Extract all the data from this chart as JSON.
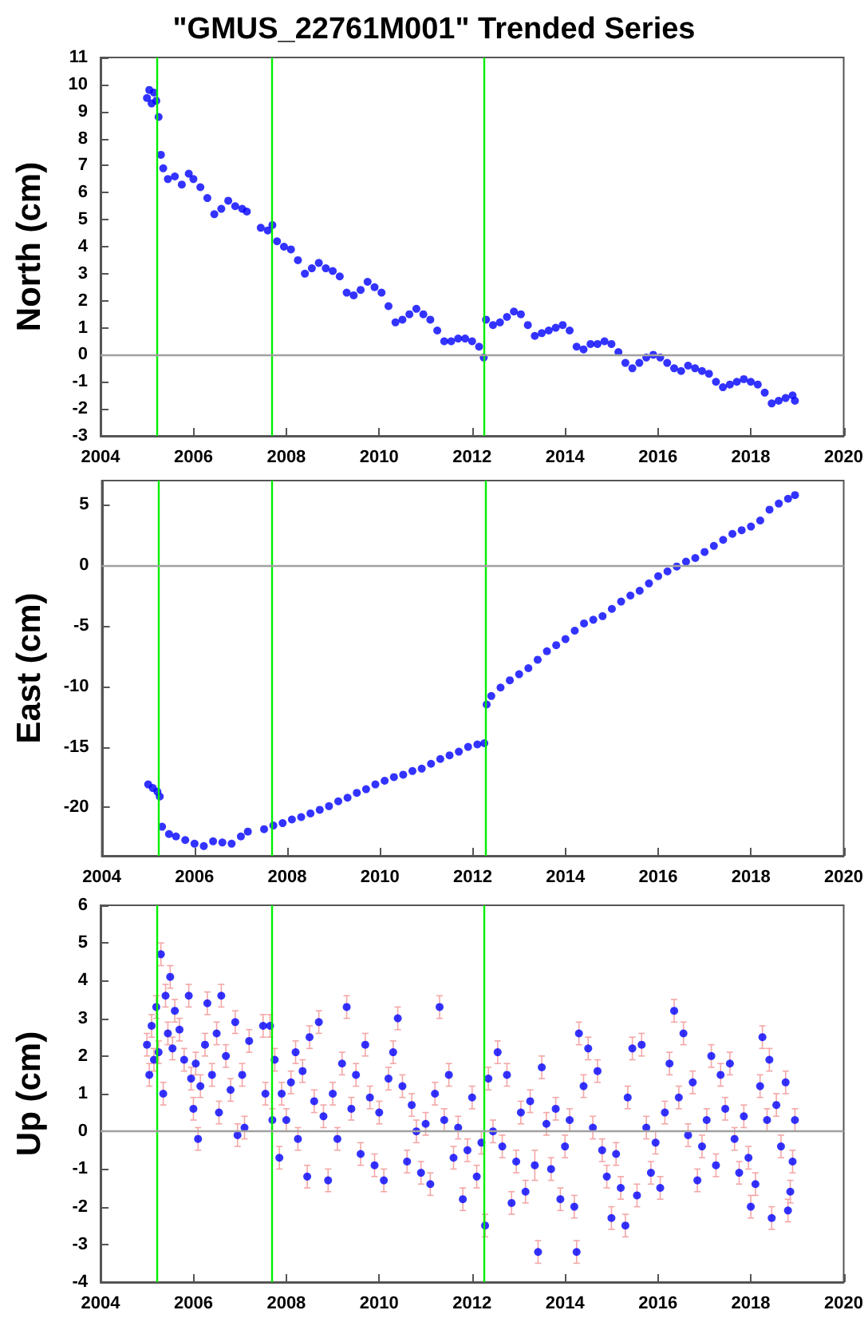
{
  "chart_data": [
    {
      "type": "scatter",
      "title": "\"GMUS_22761M001\" Trended Series",
      "ylabel": "North (cm)",
      "marker": "circle",
      "grid": false,
      "xlim": [
        2004,
        2020
      ],
      "xticks": [
        2004,
        2006,
        2008,
        2010,
        2012,
        2014,
        2016,
        2018,
        2020
      ],
      "ylim": [
        -3,
        11
      ],
      "yticks": [
        -3,
        -2,
        -1,
        0,
        1,
        2,
        3,
        4,
        5,
        6,
        7,
        8,
        9,
        10,
        11
      ],
      "ref_lines": [
        {
          "axis": "x",
          "value": 2005.22,
          "color": "#00ee00"
        },
        {
          "axis": "x",
          "value": 2007.68,
          "color": "#00ee00"
        },
        {
          "axis": "x",
          "value": 2012.26,
          "color": "#00ee00"
        },
        {
          "axis": "y",
          "value": 0,
          "color": "#a0a0a0"
        }
      ],
      "series": [
        {
          "color": "#0000ff",
          "x": [
            2005.0,
            2005.05,
            2005.1,
            2005.15,
            2005.2,
            2005.25,
            2005.3,
            2005.35,
            2005.45,
            2005.6,
            2005.75,
            2005.9,
            2006.0,
            2006.15,
            2006.3,
            2006.45,
            2006.6,
            2006.75,
            2006.9,
            2007.05,
            2007.15,
            2007.45,
            2007.6,
            2007.7,
            2007.8,
            2007.95,
            2008.1,
            2008.25,
            2008.4,
            2008.55,
            2008.7,
            2008.85,
            2009.0,
            2009.15,
            2009.3,
            2009.45,
            2009.6,
            2009.75,
            2009.9,
            2010.05,
            2010.2,
            2010.35,
            2010.5,
            2010.65,
            2010.8,
            2010.95,
            2011.1,
            2011.25,
            2011.4,
            2011.55,
            2011.7,
            2011.85,
            2012.0,
            2012.15,
            2012.25,
            2012.3,
            2012.45,
            2012.6,
            2012.75,
            2012.9,
            2013.05,
            2013.2,
            2013.35,
            2013.5,
            2013.65,
            2013.8,
            2013.95,
            2014.1,
            2014.25,
            2014.4,
            2014.55,
            2014.7,
            2014.85,
            2015.0,
            2015.15,
            2015.3,
            2015.45,
            2015.6,
            2015.75,
            2015.9,
            2016.05,
            2016.2,
            2016.35,
            2016.5,
            2016.65,
            2016.8,
            2016.95,
            2017.1,
            2017.25,
            2017.4,
            2017.55,
            2017.7,
            2017.85,
            2018.0,
            2018.15,
            2018.3,
            2018.45,
            2018.6,
            2018.75,
            2018.9,
            2018.95
          ],
          "values": [
            9.5,
            9.8,
            9.3,
            9.7,
            9.4,
            8.8,
            7.4,
            6.9,
            6.5,
            6.6,
            6.3,
            6.7,
            6.5,
            6.2,
            5.8,
            5.2,
            5.4,
            5.7,
            5.5,
            5.4,
            5.3,
            4.7,
            4.6,
            4.8,
            4.2,
            4.0,
            3.9,
            3.5,
            3.0,
            3.2,
            3.4,
            3.2,
            3.1,
            2.9,
            2.3,
            2.2,
            2.4,
            2.7,
            2.5,
            2.3,
            1.8,
            1.2,
            1.3,
            1.5,
            1.7,
            1.5,
            1.3,
            0.9,
            0.5,
            0.5,
            0.6,
            0.6,
            0.5,
            0.3,
            -0.1,
            1.3,
            1.1,
            1.2,
            1.4,
            1.6,
            1.5,
            1.1,
            0.7,
            0.8,
            0.9,
            1.0,
            1.1,
            0.9,
            0.3,
            0.2,
            0.4,
            0.4,
            0.5,
            0.4,
            0.1,
            -0.3,
            -0.5,
            -0.3,
            -0.1,
            0.0,
            -0.1,
            -0.3,
            -0.5,
            -0.6,
            -0.4,
            -0.5,
            -0.6,
            -0.7,
            -1.0,
            -1.2,
            -1.1,
            -1.0,
            -0.9,
            -1.0,
            -1.1,
            -1.4,
            -1.8,
            -1.7,
            -1.6,
            -1.5,
            -1.7
          ]
        }
      ]
    },
    {
      "type": "scatter",
      "ylabel": "East (cm)",
      "marker": "circle",
      "grid": false,
      "xlim": [
        2004,
        2020
      ],
      "xticks": [
        2004,
        2006,
        2008,
        2010,
        2012,
        2014,
        2016,
        2018,
        2020
      ],
      "ylim": [
        -24,
        7
      ],
      "yticks": [
        -20,
        -15,
        -10,
        -5,
        0,
        5
      ],
      "ref_lines": [
        {
          "axis": "x",
          "value": 2005.22,
          "color": "#00ee00"
        },
        {
          "axis": "x",
          "value": 2007.68,
          "color": "#00ee00"
        },
        {
          "axis": "x",
          "value": 2012.26,
          "color": "#00ee00"
        },
        {
          "axis": "y",
          "value": 0,
          "color": "#a0a0a0"
        }
      ],
      "series": [
        {
          "color": "#0000ff",
          "x": [
            2005.0,
            2005.1,
            2005.2,
            2005.25,
            2005.3,
            2005.45,
            2005.6,
            2005.8,
            2006.0,
            2006.2,
            2006.4,
            2006.6,
            2006.8,
            2007.0,
            2007.15,
            2007.5,
            2007.7,
            2007.9,
            2008.1,
            2008.3,
            2008.5,
            2008.7,
            2008.9,
            2009.1,
            2009.3,
            2009.5,
            2009.7,
            2009.9,
            2010.1,
            2010.3,
            2010.5,
            2010.7,
            2010.9,
            2011.1,
            2011.3,
            2011.5,
            2011.7,
            2011.9,
            2012.1,
            2012.25,
            2012.3,
            2012.4,
            2012.6,
            2012.8,
            2013.0,
            2013.2,
            2013.4,
            2013.6,
            2013.8,
            2014.0,
            2014.2,
            2014.4,
            2014.6,
            2014.8,
            2015.0,
            2015.2,
            2015.4,
            2015.6,
            2015.8,
            2016.0,
            2016.2,
            2016.4,
            2016.6,
            2016.8,
            2017.0,
            2017.2,
            2017.4,
            2017.6,
            2017.8,
            2018.0,
            2018.2,
            2018.4,
            2018.6,
            2018.8,
            2018.95
          ],
          "values": [
            -18.1,
            -18.4,
            -18.7,
            -19.1,
            -21.6,
            -22.2,
            -22.4,
            -22.7,
            -23.0,
            -23.2,
            -22.8,
            -22.9,
            -23.0,
            -22.4,
            -22.0,
            -21.8,
            -21.5,
            -21.3,
            -21.0,
            -20.8,
            -20.5,
            -20.2,
            -19.9,
            -19.5,
            -19.2,
            -18.8,
            -18.5,
            -18.1,
            -17.8,
            -17.5,
            -17.3,
            -17.0,
            -16.8,
            -16.4,
            -16.0,
            -15.7,
            -15.4,
            -15.0,
            -14.8,
            -14.7,
            -11.5,
            -10.8,
            -10.1,
            -9.5,
            -9.0,
            -8.5,
            -7.8,
            -7.1,
            -6.6,
            -6.1,
            -5.4,
            -4.8,
            -4.5,
            -4.2,
            -3.6,
            -3.0,
            -2.5,
            -2.1,
            -1.5,
            -0.9,
            -0.5,
            -0.1,
            0.3,
            0.6,
            1.1,
            1.6,
            2.1,
            2.6,
            2.9,
            3.2,
            3.7,
            4.6,
            5.1,
            5.5,
            5.8
          ]
        }
      ]
    },
    {
      "type": "scatter",
      "ylabel": "Up (cm)",
      "marker": "circle",
      "grid": false,
      "xlim": [
        2004,
        2020
      ],
      "xticks": [
        2004,
        2006,
        2008,
        2010,
        2012,
        2014,
        2016,
        2018,
        2020
      ],
      "ylim": [
        -4,
        6
      ],
      "yticks": [
        -4,
        -3,
        -2,
        -1,
        0,
        1,
        2,
        3,
        4,
        5,
        6
      ],
      "ref_lines": [
        {
          "axis": "x",
          "value": 2005.22,
          "color": "#00ee00"
        },
        {
          "axis": "x",
          "value": 2007.68,
          "color": "#00ee00"
        },
        {
          "axis": "x",
          "value": 2012.26,
          "color": "#00ee00"
        },
        {
          "axis": "y",
          "value": 0,
          "color": "#a0a0a0"
        }
      ],
      "series": [
        {
          "color": "#0000ff",
          "x": [
            2005.0,
            2005.05,
            2005.1,
            2005.15,
            2005.2,
            2005.25,
            2005.3,
            2005.35,
            2005.4,
            2005.45,
            2005.5,
            2005.55,
            2005.6,
            2005.7,
            2005.8,
            2005.9,
            2005.95,
            2006.0,
            2006.05,
            2006.1,
            2006.15,
            2006.25,
            2006.3,
            2006.4,
            2006.5,
            2006.55,
            2006.6,
            2006.7,
            2006.8,
            2006.9,
            2006.95,
            2007.05,
            2007.1,
            2007.2,
            2007.5,
            2007.55,
            2007.65,
            2007.7,
            2007.75,
            2007.85,
            2007.9,
            2008.0,
            2008.1,
            2008.2,
            2008.25,
            2008.35,
            2008.45,
            2008.5,
            2008.6,
            2008.7,
            2008.8,
            2008.9,
            2009.0,
            2009.1,
            2009.2,
            2009.3,
            2009.4,
            2009.5,
            2009.6,
            2009.7,
            2009.8,
            2009.9,
            2010.0,
            2010.1,
            2010.2,
            2010.3,
            2010.4,
            2010.5,
            2010.6,
            2010.7,
            2010.8,
            2010.9,
            2011.0,
            2011.1,
            2011.2,
            2011.3,
            2011.4,
            2011.5,
            2011.6,
            2011.7,
            2011.8,
            2011.9,
            2012.0,
            2012.1,
            2012.2,
            2012.28,
            2012.35,
            2012.45,
            2012.55,
            2012.65,
            2012.75,
            2012.85,
            2012.95,
            2013.05,
            2013.15,
            2013.25,
            2013.35,
            2013.42,
            2013.5,
            2013.6,
            2013.7,
            2013.8,
            2013.9,
            2014.0,
            2014.1,
            2014.2,
            2014.25,
            2014.3,
            2014.4,
            2014.5,
            2014.6,
            2014.7,
            2014.8,
            2014.9,
            2015.0,
            2015.1,
            2015.2,
            2015.3,
            2015.35,
            2015.45,
            2015.55,
            2015.65,
            2015.75,
            2015.85,
            2015.95,
            2016.05,
            2016.15,
            2016.25,
            2016.35,
            2016.45,
            2016.55,
            2016.65,
            2016.75,
            2016.85,
            2016.95,
            2017.05,
            2017.15,
            2017.25,
            2017.35,
            2017.45,
            2017.55,
            2017.65,
            2017.75,
            2017.85,
            2017.95,
            2018.0,
            2018.1,
            2018.2,
            2018.25,
            2018.35,
            2018.4,
            2018.45,
            2018.55,
            2018.65,
            2018.75,
            2018.8,
            2018.85,
            2018.9,
            2018.95
          ],
          "values": [
            2.3,
            1.5,
            2.8,
            1.9,
            3.3,
            2.1,
            4.7,
            1.0,
            3.6,
            2.6,
            4.1,
            2.2,
            3.2,
            2.7,
            1.9,
            3.6,
            1.4,
            0.6,
            1.8,
            -0.2,
            1.2,
            2.3,
            3.4,
            1.5,
            2.6,
            0.5,
            3.6,
            2.0,
            1.1,
            2.9,
            -0.1,
            1.5,
            0.1,
            2.4,
            2.8,
            1.0,
            2.8,
            0.3,
            1.9,
            -0.7,
            1.0,
            0.3,
            1.3,
            2.1,
            -0.2,
            1.6,
            -1.2,
            2.5,
            0.8,
            2.9,
            0.4,
            -1.3,
            1.0,
            -0.2,
            1.8,
            3.3,
            0.6,
            1.5,
            -0.6,
            2.3,
            0.9,
            -0.9,
            0.5,
            -1.3,
            1.4,
            2.1,
            3.0,
            1.2,
            -0.8,
            0.7,
            0.0,
            -1.1,
            0.2,
            -1.4,
            1.0,
            3.3,
            0.3,
            1.5,
            -0.7,
            0.1,
            -1.8,
            -0.5,
            0.9,
            -1.2,
            -0.3,
            -2.5,
            1.4,
            0.0,
            2.1,
            -0.4,
            1.5,
            -1.9,
            -0.8,
            0.5,
            -1.6,
            0.8,
            -0.9,
            -3.2,
            1.7,
            0.2,
            -1.0,
            0.6,
            -1.8,
            -0.4,
            0.3,
            -2.0,
            -3.2,
            2.6,
            1.2,
            2.2,
            0.1,
            1.6,
            -0.5,
            -1.2,
            -2.3,
            -0.6,
            -1.5,
            -2.5,
            0.9,
            2.2,
            -1.7,
            2.3,
            0.1,
            -1.1,
            -0.3,
            -1.5,
            0.5,
            1.8,
            3.2,
            0.9,
            2.6,
            -0.1,
            1.3,
            -1.3,
            -0.4,
            0.3,
            2.0,
            -0.9,
            1.5,
            0.6,
            1.8,
            -0.2,
            -1.1,
            0.4,
            -0.7,
            -2.0,
            -1.4,
            1.2,
            2.5,
            0.3,
            1.9,
            -2.3,
            0.7,
            -0.4,
            1.3,
            -2.1,
            -1.6,
            -0.8,
            0.3
          ],
          "errors": [
            0.3,
            0.3,
            0.3,
            0.3,
            0.3,
            0.3,
            0.3,
            0.3,
            0.3,
            0.3,
            0.3,
            0.3,
            0.3,
            0.3,
            0.3,
            0.3,
            0.3,
            0.3,
            0.3,
            0.3,
            0.3,
            0.3,
            0.3,
            0.3,
            0.3,
            0.3,
            0.3,
            0.3,
            0.3,
            0.3,
            0.3,
            0.3,
            0.3,
            0.3,
            0.3,
            0.3,
            0.3,
            0.3,
            0.3,
            0.3,
            0.3,
            0.3,
            0.3,
            0.3,
            0.3,
            0.3,
            0.3,
            0.3,
            0.3,
            0.3,
            0.3,
            0.3,
            0.3,
            0.3,
            0.3,
            0.3,
            0.3,
            0.3,
            0.3,
            0.3,
            0.3,
            0.3,
            0.3,
            0.3,
            0.3,
            0.3,
            0.3,
            0.3,
            0.3,
            0.3,
            0.3,
            0.3,
            0.3,
            0.3,
            0.3,
            0.3,
            0.3,
            0.3,
            0.3,
            0.3,
            0.3,
            0.3,
            0.3,
            0.3,
            0.3,
            0.3,
            0.3,
            0.3,
            0.3,
            0.3,
            0.3,
            0.3,
            0.3,
            0.3,
            0.3,
            0.3,
            0.4,
            0.3,
            0.3,
            0.3,
            0.3,
            0.3,
            0.3,
            0.3,
            0.3,
            0.3,
            0.3,
            0.3,
            0.3,
            0.3,
            0.3,
            0.3,
            0.3,
            0.3,
            0.3,
            0.3,
            0.3,
            0.3,
            0.3,
            0.3,
            0.3,
            0.3,
            0.3,
            0.3,
            0.3,
            0.3,
            0.3,
            0.3,
            0.3,
            0.3,
            0.3,
            0.3,
            0.3,
            0.3,
            0.3,
            0.3,
            0.3,
            0.3,
            0.3,
            0.3,
            0.3,
            0.3,
            0.3,
            0.3,
            0.3,
            0.3,
            0.3,
            0.3,
            0.3,
            0.3,
            0.3,
            0.3,
            0.3,
            0.3,
            0.3,
            0.3,
            0.3,
            0.3,
            0.3
          ]
        }
      ]
    }
  ]
}
